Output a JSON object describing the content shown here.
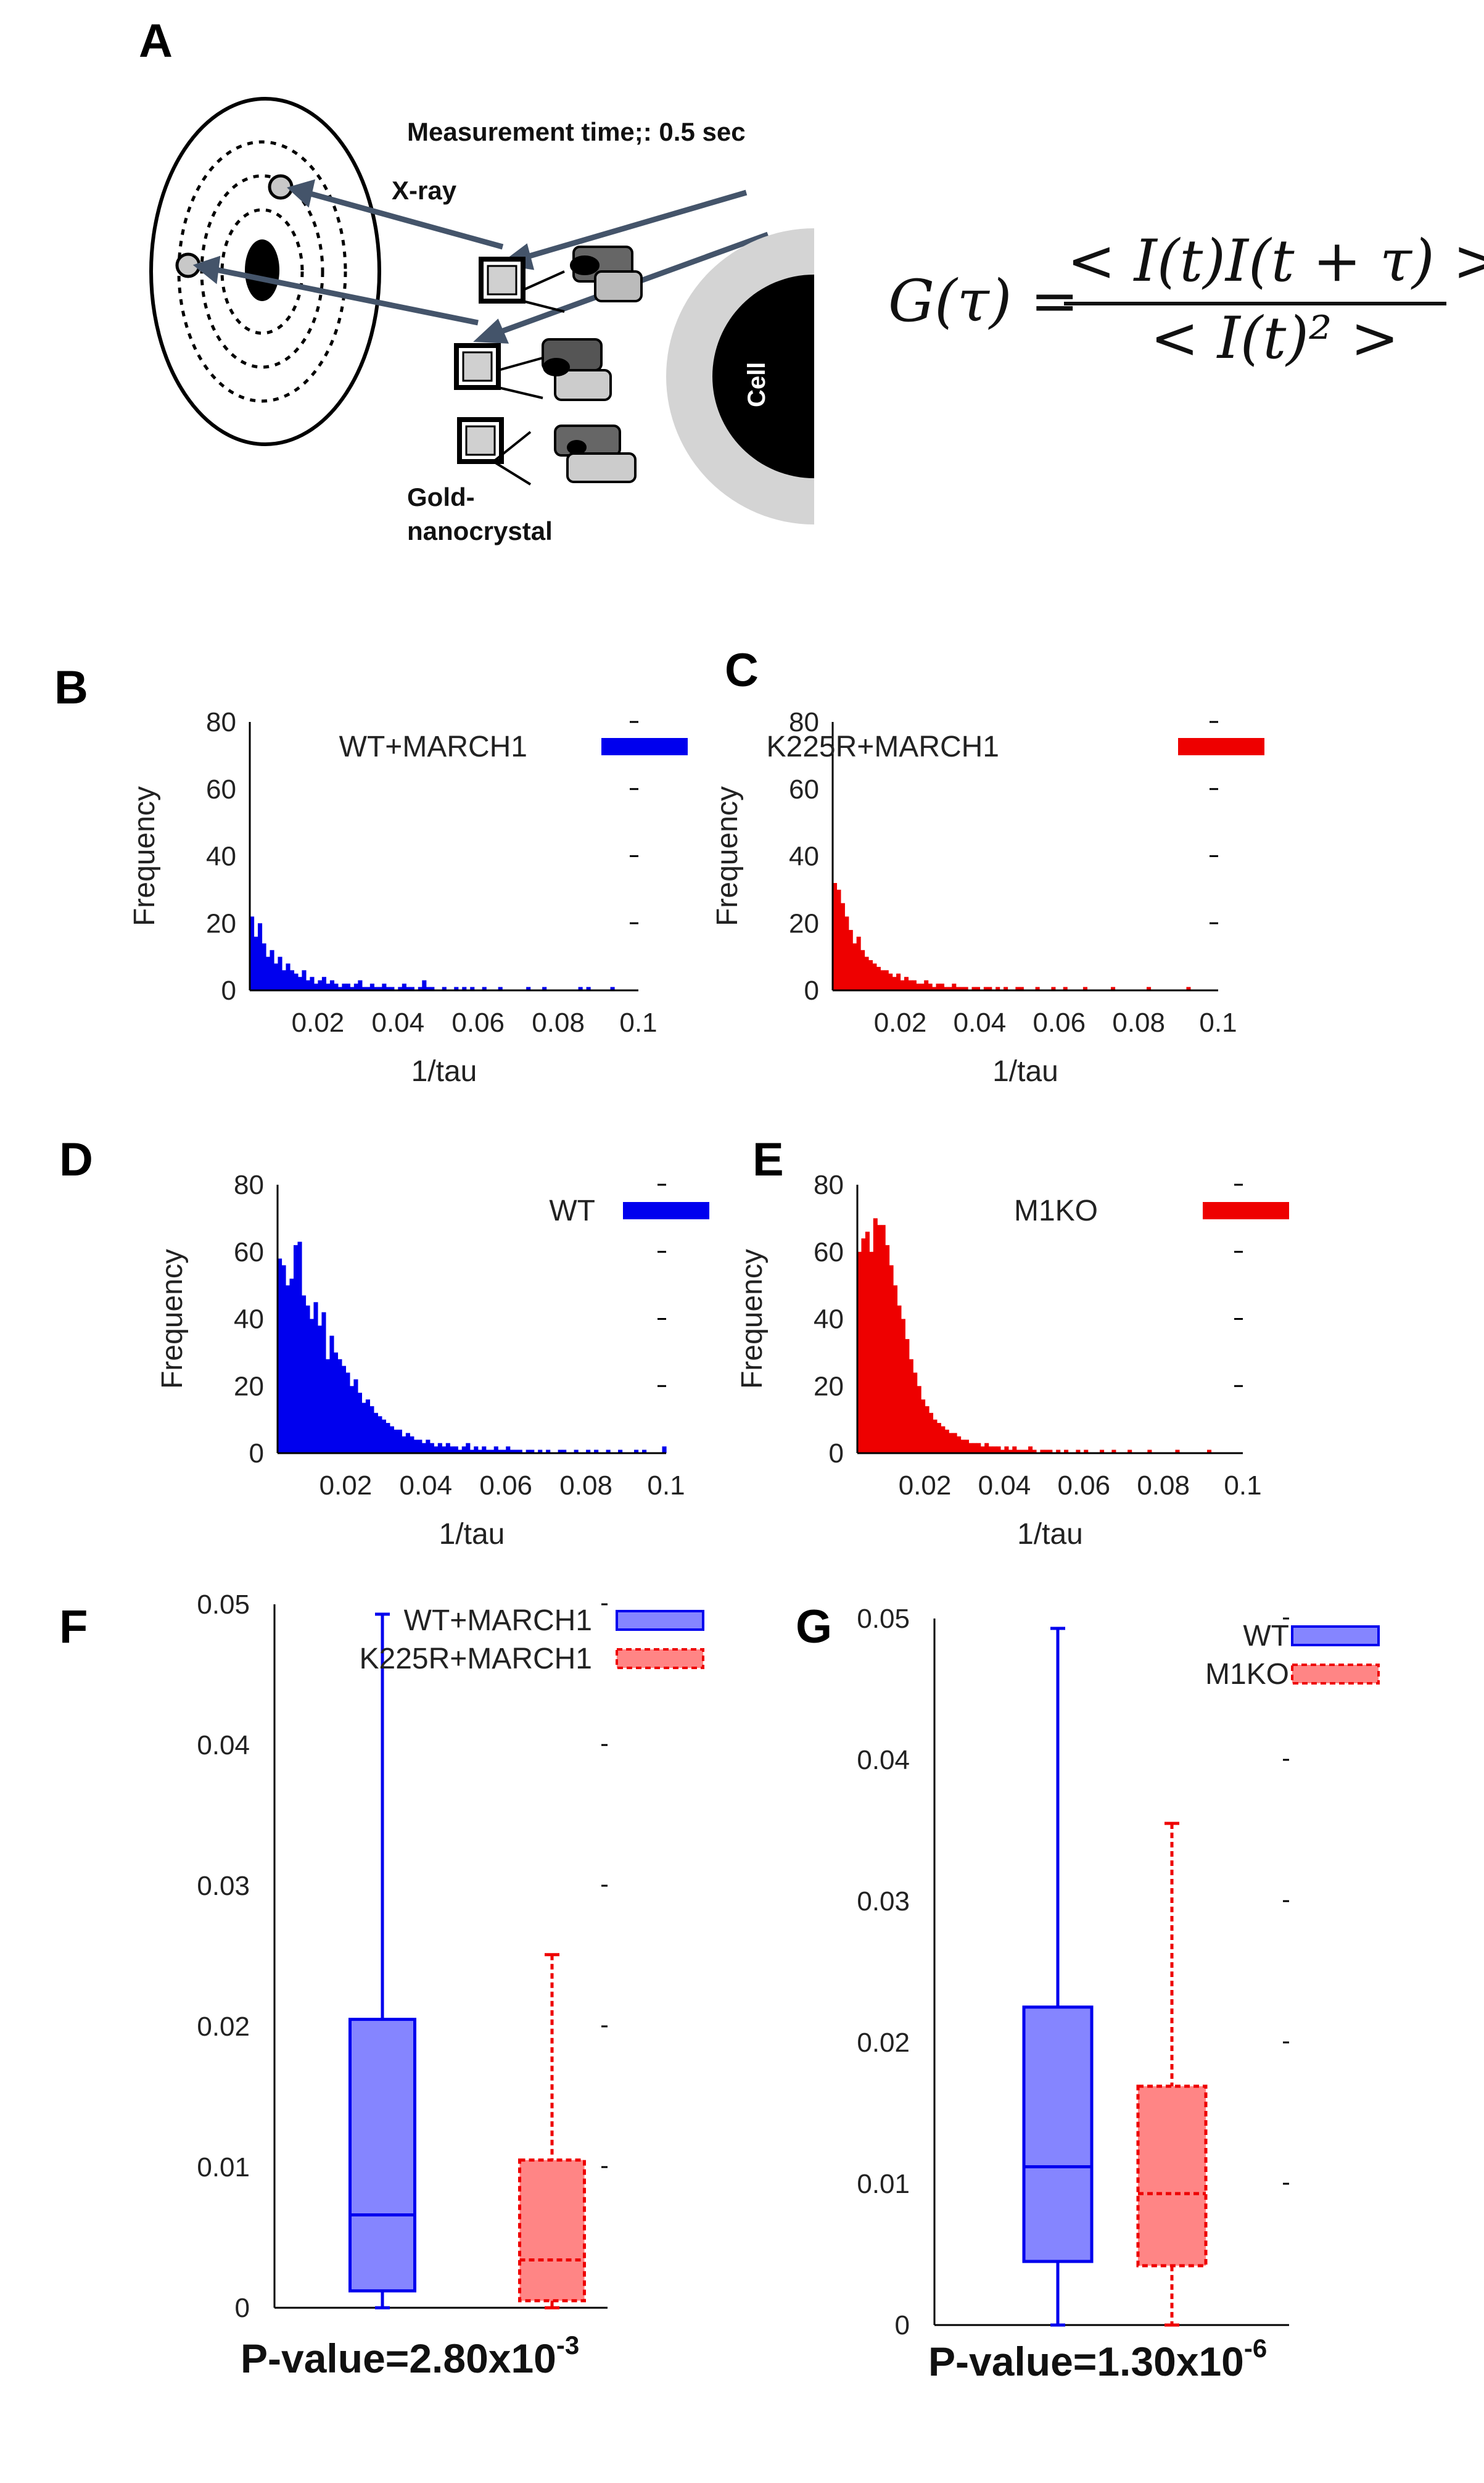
{
  "panel_labels": [
    "A",
    "B",
    "C",
    "D",
    "E",
    "F",
    "G"
  ],
  "diagram": {
    "measurement_text": "Measurement time;: 0.5 sec",
    "xray_label": "X-ray",
    "gold_label_1": "Gold-",
    "gold_label_2": "nanocrystal",
    "cell_label": "Cell",
    "equation_lhs": "G(τ) =",
    "equation_num": "< I(t)I(t + τ) >",
    "equation_den": "< I(t)² >"
  },
  "colors": {
    "blue": "#0000ee",
    "red": "#ee0000",
    "blue_fill": "#8585ff",
    "red_fill": "#ff8585"
  },
  "chart_data": [
    {
      "id": "B",
      "type": "bar",
      "legend": "WT+MARCH1",
      "color": "#0000ee",
      "xlabel": "1/tau",
      "ylabel": "Frequency",
      "xlim": [
        0.003,
        0.1
      ],
      "ylim": [
        0,
        80
      ],
      "xticks": [
        "0.02",
        "0.04",
        "0.06",
        "0.08",
        "0.1"
      ],
      "yticks": [
        "0",
        "20",
        "40",
        "60",
        "80"
      ],
      "bin_width": 0.001,
      "x_start": 0.003,
      "values": [
        22,
        16,
        20,
        14,
        10,
        12,
        8,
        10,
        6,
        8,
        6,
        5,
        4,
        6,
        3,
        4,
        2,
        3,
        4,
        2,
        3,
        2,
        1,
        2,
        2,
        1,
        2,
        3,
        1,
        1,
        2,
        1,
        1,
        2,
        1,
        1,
        0,
        1,
        2,
        1,
        1,
        0,
        1,
        3,
        1,
        1,
        0,
        0,
        1,
        0,
        0,
        1,
        0,
        1,
        0,
        1,
        0,
        0,
        1,
        0,
        0,
        0,
        1,
        0,
        0,
        0,
        0,
        0,
        0,
        1,
        0,
        0,
        0,
        1,
        0,
        0,
        0,
        0,
        0,
        0,
        0,
        0,
        1,
        0,
        1,
        0,
        0,
        0,
        0,
        0,
        1,
        0,
        0,
        0,
        0,
        0,
        0
      ]
    },
    {
      "id": "C",
      "type": "bar",
      "legend": "K225R+MARCH1",
      "color": "#ee0000",
      "xlabel": "1/tau",
      "ylabel": "Frequency",
      "xlim": [
        0.003,
        0.1
      ],
      "ylim": [
        0,
        80
      ],
      "xticks": [
        "0.02",
        "0.04",
        "0.06",
        "0.08",
        "0.1"
      ],
      "yticks": [
        "0",
        "20",
        "40",
        "60",
        "80"
      ],
      "bin_width": 0.001,
      "x_start": 0.003,
      "values": [
        32,
        30,
        26,
        22,
        18,
        14,
        16,
        12,
        10,
        9,
        8,
        7,
        6,
        6,
        5,
        4,
        5,
        3,
        4,
        3,
        3,
        2,
        2,
        3,
        2,
        1,
        2,
        2,
        1,
        1,
        2,
        1,
        1,
        1,
        0,
        1,
        1,
        0,
        1,
        1,
        0,
        1,
        0,
        1,
        0,
        0,
        1,
        1,
        0,
        0,
        0,
        1,
        0,
        0,
        0,
        1,
        0,
        0,
        1,
        0,
        0,
        0,
        0,
        1,
        0,
        0,
        0,
        0,
        0,
        0,
        1,
        0,
        0,
        0,
        0,
        0,
        0,
        0,
        0,
        1,
        0,
        0,
        0,
        0,
        0,
        0,
        0,
        0,
        0,
        1,
        0,
        0,
        0,
        0,
        0,
        0,
        0
      ]
    },
    {
      "id": "D",
      "type": "bar",
      "legend": "WT",
      "color": "#0000ee",
      "xlabel": "1/tau",
      "ylabel": "Frequency",
      "xlim": [
        0.003,
        0.1
      ],
      "ylim": [
        0,
        80
      ],
      "xticks": [
        "0.02",
        "0.04",
        "0.06",
        "0.08",
        "0.1"
      ],
      "yticks": [
        "0",
        "20",
        "40",
        "60",
        "80"
      ],
      "bin_width": 0.001,
      "x_start": 0.003,
      "values": [
        58,
        56,
        50,
        52,
        62,
        63,
        47,
        44,
        40,
        45,
        38,
        42,
        28,
        35,
        30,
        28,
        26,
        24,
        20,
        22,
        18,
        15,
        16,
        14,
        12,
        11,
        10,
        9,
        8,
        7,
        7,
        5,
        6,
        5,
        4,
        4,
        3,
        4,
        3,
        2,
        3,
        2,
        3,
        2,
        2,
        1,
        2,
        3,
        1,
        2,
        1,
        2,
        1,
        1,
        2,
        1,
        1,
        2,
        1,
        1,
        1,
        0,
        1,
        1,
        0,
        1,
        0,
        1,
        0,
        0,
        1,
        1,
        0,
        0,
        1,
        0,
        0,
        1,
        0,
        1,
        0,
        0,
        1,
        0,
        0,
        1,
        0,
        0,
        0,
        1,
        0,
        1,
        0,
        0,
        0,
        0,
        2
      ]
    },
    {
      "id": "E",
      "type": "bar",
      "legend": "M1KO",
      "color": "#ee0000",
      "xlabel": "1/tau",
      "ylabel": "Frequency",
      "xlim": [
        0.003,
        0.1
      ],
      "ylim": [
        0,
        80
      ],
      "xticks": [
        "0.02",
        "0.04",
        "0.06",
        "0.08",
        "0.1"
      ],
      "yticks": [
        "0",
        "20",
        "40",
        "60",
        "80"
      ],
      "bin_width": 0.001,
      "x_start": 0.003,
      "values": [
        60,
        64,
        66,
        60,
        70,
        68,
        68,
        62,
        56,
        50,
        44,
        40,
        34,
        28,
        24,
        20,
        16,
        14,
        12,
        10,
        9,
        8,
        7,
        6,
        6,
        5,
        4,
        4,
        3,
        3,
        3,
        2,
        3,
        2,
        2,
        2,
        1,
        2,
        1,
        2,
        1,
        1,
        1,
        2,
        1,
        0,
        1,
        1,
        1,
        0,
        1,
        0,
        1,
        0,
        0,
        1,
        0,
        1,
        0,
        0,
        0,
        1,
        0,
        0,
        1,
        0,
        0,
        0,
        1,
        0,
        0,
        0,
        0,
        1,
        0,
        0,
        0,
        0,
        0,
        0,
        1,
        0,
        0,
        0,
        0,
        0,
        0,
        0,
        1,
        0,
        0,
        0,
        0,
        0,
        0,
        0,
        0
      ]
    },
    {
      "id": "F",
      "type": "box",
      "ylim": [
        0,
        0.05
      ],
      "yticks": [
        "0",
        "0.01",
        "0.02",
        "0.03",
        "0.04",
        "0.05"
      ],
      "series": [
        {
          "name": "WT+MARCH1",
          "color": "#0000ee",
          "fill": "#8585ff",
          "dashed": false,
          "whisker_low": 0.0,
          "q1": 0.0012,
          "median": 0.0066,
          "q3": 0.0205,
          "whisker_high": 0.0493
        },
        {
          "name": "K225R+MARCH1",
          "color": "#ee0000",
          "fill": "#ff8585",
          "dashed": true,
          "whisker_low": 0.0,
          "q1": 0.0005,
          "median": 0.0034,
          "q3": 0.0105,
          "whisker_high": 0.0251
        }
      ],
      "pvalue_text": "P-value=2.80x10",
      "pvalue_exp": "-3"
    },
    {
      "id": "G",
      "type": "box",
      "ylim": [
        0,
        0.05
      ],
      "yticks": [
        "0",
        "0.01",
        "0.02",
        "0.03",
        "0.04",
        "0.05"
      ],
      "series": [
        {
          "name": "WT",
          "color": "#0000ee",
          "fill": "#8585ff",
          "dashed": false,
          "whisker_low": 0.0,
          "q1": 0.0045,
          "median": 0.0112,
          "q3": 0.0225,
          "whisker_high": 0.0493
        },
        {
          "name": "M1KO",
          "color": "#ee0000",
          "fill": "#ff8585",
          "dashed": true,
          "whisker_low": 0.0,
          "q1": 0.0042,
          "median": 0.0093,
          "q3": 0.0169,
          "whisker_high": 0.0355
        }
      ],
      "pvalue_text": "P-value=1.30x10",
      "pvalue_exp": "-6"
    }
  ]
}
